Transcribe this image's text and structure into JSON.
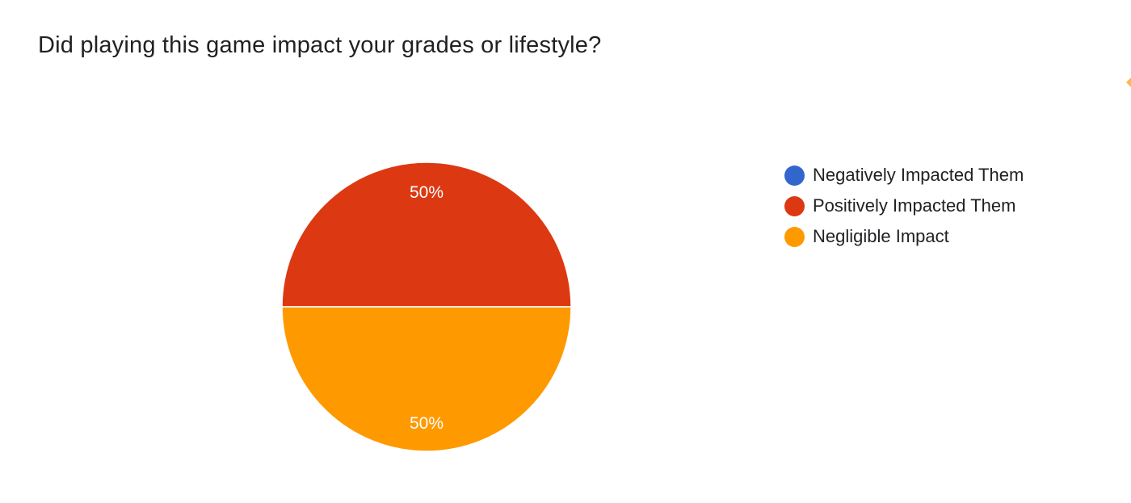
{
  "chart_data": {
    "type": "pie",
    "title": "Did playing this game impact your grades or lifestyle?",
    "categories": [
      "Negatively Impacted Them",
      "Positively Impacted Them",
      "Negligible Impact"
    ],
    "values": [
      0,
      50,
      50
    ],
    "value_labels": [
      "",
      "50%",
      "50%"
    ],
    "colors": [
      "#3366cc",
      "#dc3912",
      "#ff9900"
    ],
    "legend_position": "right"
  }
}
